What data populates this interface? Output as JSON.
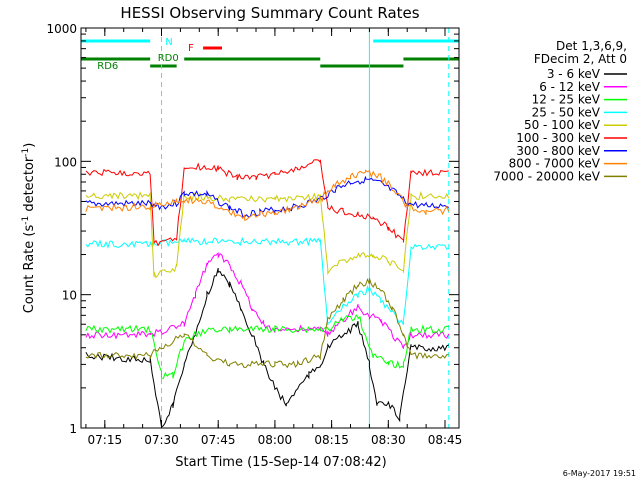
{
  "chart_data": {
    "type": "line",
    "title": "HESSI Observing Summary Count Rates",
    "xlabel": "Start Time (15-Sep-14 07:08:42)",
    "ylabel": "Count Rate (s-1 detector-1)",
    "ylabel_parts": {
      "pre": "Count Rate (s",
      "sup1": "-1",
      "mid": " detector",
      "sup2": "-1",
      "post": ")"
    },
    "yscale": "log",
    "ylim": [
      1,
      1000
    ],
    "xlim": [
      "07:08:42",
      "08:48:42"
    ],
    "x_ticks": [
      "07:15",
      "07:30",
      "07:45",
      "08:00",
      "08:15",
      "08:30",
      "08:45"
    ],
    "y_ticks": [
      "1",
      "10",
      "100",
      "1000"
    ],
    "footer_date": "6-May-2017 19:51",
    "legend": {
      "header": [
        "Det 1,3,6,9,",
        "FDecim 2, Att 0"
      ],
      "entries": [
        {
          "label": "3 - 6 keV",
          "color": "#000000"
        },
        {
          "label": "6 - 12 keV",
          "color": "#ff00ff"
        },
        {
          "label": "12 - 25 keV",
          "color": "#00ff00"
        },
        {
          "label": "25 - 50 keV",
          "color": "#00ffff"
        },
        {
          "label": "50 - 100 keV",
          "color": "#cccc00"
        },
        {
          "label": "100 - 300 keV",
          "color": "#ff0000"
        },
        {
          "label": "300 - 800 keV",
          "color": "#0000ff"
        },
        {
          "label": "800 - 7000 keV",
          "color": "#ff8000"
        },
        {
          "label": "7000 - 20000 keV",
          "color": "#808000"
        }
      ]
    },
    "flag_bars": [
      {
        "label": "N",
        "color": "#00ffff",
        "label_x": "07:31",
        "segments": [
          [
            "07:08:42",
            "07:27"
          ],
          [
            "08:26",
            "08:48:42"
          ]
        ]
      },
      {
        "label": "F",
        "color": "#ff0000",
        "label_x": "07:37",
        "segments": [
          [
            "07:41",
            "07:46"
          ]
        ]
      },
      {
        "label": "RD0",
        "color": "#008000",
        "label_x": "07:29",
        "segments": [
          [
            "07:36",
            "08:12"
          ]
        ]
      },
      {
        "label": "RD6",
        "color": "#008000",
        "label_x": "07:13",
        "segments": [
          [
            "07:08:42",
            "07:27"
          ],
          [
            "07:27",
            "07:34"
          ],
          [
            "08:12",
            "08:34"
          ],
          [
            "08:34",
            "08:48:42"
          ]
        ]
      }
    ],
    "night_boundaries": [
      "07:08:42",
      "08:25"
    ],
    "day_boundaries": [
      "07:30",
      "08:46"
    ],
    "gaps": [
      [
        "07:27",
        "07:36"
      ],
      [
        "08:12",
        "08:14"
      ],
      [
        "08:34",
        "08:36"
      ]
    ],
    "series": [
      {
        "name": "3 - 6 keV",
        "color": "#000000",
        "points": [
          [
            "07:10",
            3.5
          ],
          [
            "07:27",
            3.2
          ],
          [
            "07:30",
            1.0
          ],
          [
            "07:33",
            1.5
          ],
          [
            "07:36",
            3.0
          ],
          [
            "07:39",
            5.0
          ],
          [
            "07:42",
            10.0
          ],
          [
            "07:45",
            15.0
          ],
          [
            "07:48",
            12.0
          ],
          [
            "07:51",
            8.0
          ],
          [
            "07:54",
            5.0
          ],
          [
            "07:57",
            3.0
          ],
          [
            "08:00",
            2.0
          ],
          [
            "08:03",
            1.5
          ],
          [
            "08:06",
            2.0
          ],
          [
            "08:09",
            2.5
          ],
          [
            "08:12",
            3.0
          ],
          [
            "08:14",
            4.0
          ],
          [
            "08:18",
            5.0
          ],
          [
            "08:22",
            6.0
          ],
          [
            "08:25",
            3.0
          ],
          [
            "08:27",
            1.5
          ],
          [
            "08:30",
            1.5
          ],
          [
            "08:33",
            1.2
          ],
          [
            "08:36",
            4.0
          ],
          [
            "08:46",
            4.0
          ]
        ]
      },
      {
        "name": "6 - 12 keV",
        "color": "#ff00ff",
        "points": [
          [
            "07:10",
            5.0
          ],
          [
            "07:27",
            5.0
          ],
          [
            "07:36",
            6.0
          ],
          [
            "07:39",
            10.0
          ],
          [
            "07:42",
            17.0
          ],
          [
            "07:45",
            20.0
          ],
          [
            "07:48",
            17.0
          ],
          [
            "07:51",
            12.0
          ],
          [
            "07:54",
            8.0
          ],
          [
            "07:57",
            6.0
          ],
          [
            "08:00",
            5.5
          ],
          [
            "08:12",
            5.5
          ],
          [
            "08:14",
            5.0
          ],
          [
            "08:18",
            6.5
          ],
          [
            "08:22",
            8.0
          ],
          [
            "08:25",
            7.0
          ],
          [
            "08:28",
            6.5
          ],
          [
            "08:34",
            4.0
          ],
          [
            "08:36",
            5.0
          ],
          [
            "08:46",
            5.0
          ]
        ]
      },
      {
        "name": "12 - 25 keV",
        "color": "#00ff00",
        "points": [
          [
            "07:10",
            5.5
          ],
          [
            "07:27",
            5.5
          ],
          [
            "07:30",
            2.5
          ],
          [
            "07:33",
            2.5
          ],
          [
            "07:36",
            4.5
          ],
          [
            "07:42",
            5.5
          ],
          [
            "07:48",
            5.5
          ],
          [
            "08:00",
            5.5
          ],
          [
            "08:12",
            5.5
          ],
          [
            "08:14",
            5.5
          ],
          [
            "08:18",
            6.5
          ],
          [
            "08:22",
            7.0
          ],
          [
            "08:26",
            3.5
          ],
          [
            "08:30",
            3.0
          ],
          [
            "08:34",
            3.0
          ],
          [
            "08:36",
            5.5
          ],
          [
            "08:46",
            5.5
          ]
        ]
      },
      {
        "name": "25 - 50 keV",
        "color": "#00ffff",
        "points": [
          [
            "07:10",
            24
          ],
          [
            "07:27",
            24
          ],
          [
            "07:36",
            25
          ],
          [
            "08:12",
            25
          ],
          [
            "08:14",
            6.0
          ],
          [
            "08:18",
            8.0
          ],
          [
            "08:22",
            10.0
          ],
          [
            "08:25",
            11.0
          ],
          [
            "08:28",
            9.0
          ],
          [
            "08:34",
            6.0
          ],
          [
            "08:36",
            23
          ],
          [
            "08:46",
            23
          ]
        ]
      },
      {
        "name": "50 - 100 keV",
        "color": "#cccc00",
        "points": [
          [
            "07:10",
            55
          ],
          [
            "07:27",
            55
          ],
          [
            "07:28",
            14
          ],
          [
            "07:34",
            16
          ],
          [
            "07:36",
            55
          ],
          [
            "07:48",
            52
          ],
          [
            "08:00",
            52
          ],
          [
            "08:12",
            55
          ],
          [
            "08:14",
            15
          ],
          [
            "08:18",
            18
          ],
          [
            "08:22",
            20
          ],
          [
            "08:26",
            20
          ],
          [
            "08:30",
            18
          ],
          [
            "08:34",
            15
          ],
          [
            "08:36",
            55
          ],
          [
            "08:46",
            55
          ]
        ]
      },
      {
        "name": "100 - 300 keV",
        "color": "#ff0000",
        "points": [
          [
            "07:10",
            82
          ],
          [
            "07:27",
            82
          ],
          [
            "07:28",
            24
          ],
          [
            "07:34",
            26
          ],
          [
            "07:36",
            92
          ],
          [
            "07:45",
            88
          ],
          [
            "07:50",
            75
          ],
          [
            "07:55",
            76
          ],
          [
            "08:00",
            80
          ],
          [
            "08:06",
            88
          ],
          [
            "08:12",
            100
          ],
          [
            "08:14",
            45
          ],
          [
            "08:18",
            42
          ],
          [
            "08:22",
            40
          ],
          [
            "08:26",
            38
          ],
          [
            "08:30",
            32
          ],
          [
            "08:34",
            25
          ],
          [
            "08:36",
            82
          ],
          [
            "08:46",
            82
          ]
        ]
      },
      {
        "name": "300 - 800 keV",
        "color": "#0000ff",
        "points": [
          [
            "07:10",
            48
          ],
          [
            "07:27",
            48
          ],
          [
            "07:30",
            46
          ],
          [
            "07:34",
            48
          ],
          [
            "07:36",
            58
          ],
          [
            "07:42",
            56
          ],
          [
            "07:48",
            45
          ],
          [
            "07:52",
            40
          ],
          [
            "07:56",
            42
          ],
          [
            "08:00",
            43
          ],
          [
            "08:06",
            46
          ],
          [
            "08:12",
            52
          ],
          [
            "08:16",
            62
          ],
          [
            "08:20",
            70
          ],
          [
            "08:24",
            73
          ],
          [
            "08:28",
            68
          ],
          [
            "08:32",
            58
          ],
          [
            "08:35",
            48
          ],
          [
            "08:40",
            46
          ],
          [
            "08:46",
            47
          ]
        ]
      },
      {
        "name": "800 - 7000 keV",
        "color": "#ff8000",
        "points": [
          [
            "07:10",
            44
          ],
          [
            "07:27",
            46
          ],
          [
            "07:30",
            47
          ],
          [
            "07:34",
            50
          ],
          [
            "07:36",
            52
          ],
          [
            "07:42",
            50
          ],
          [
            "07:48",
            42
          ],
          [
            "07:52",
            38
          ],
          [
            "07:56",
            40
          ],
          [
            "08:00",
            41
          ],
          [
            "08:06",
            45
          ],
          [
            "08:12",
            52
          ],
          [
            "08:16",
            66
          ],
          [
            "08:20",
            76
          ],
          [
            "08:24",
            82
          ],
          [
            "08:28",
            76
          ],
          [
            "08:32",
            60
          ],
          [
            "08:35",
            46
          ],
          [
            "08:40",
            42
          ],
          [
            "08:46",
            43
          ]
        ]
      },
      {
        "name": "7000 - 20000 keV",
        "color": "#808000",
        "points": [
          [
            "07:10",
            3.5
          ],
          [
            "07:27",
            3.5
          ],
          [
            "07:30",
            4.0
          ],
          [
            "07:36",
            5.0
          ],
          [
            "07:42",
            3.5
          ],
          [
            "07:48",
            3.0
          ],
          [
            "07:54",
            3.0
          ],
          [
            "08:00",
            3.0
          ],
          [
            "08:06",
            3.0
          ],
          [
            "08:12",
            3.5
          ],
          [
            "08:14",
            6.5
          ],
          [
            "08:18",
            9.0
          ],
          [
            "08:22",
            12.0
          ],
          [
            "08:25",
            12.5
          ],
          [
            "08:28",
            11.0
          ],
          [
            "08:31",
            8.0
          ],
          [
            "08:34",
            5.0
          ],
          [
            "08:36",
            3.5
          ],
          [
            "08:46",
            3.5
          ]
        ]
      }
    ]
  }
}
